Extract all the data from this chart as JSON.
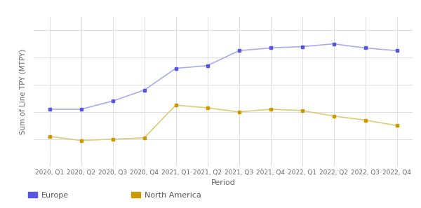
{
  "periods": [
    "2020, Q1",
    "2020, Q2",
    "2020, Q3",
    "2020, Q4",
    "2021, Q1",
    "2021, Q2",
    "2021, Q3",
    "2021, Q4",
    "2022, Q1",
    "2022, Q2",
    "2022, Q3",
    "2022, Q4"
  ],
  "europe": [
    4.2,
    4.2,
    4.8,
    5.6,
    7.2,
    7.4,
    8.5,
    8.7,
    8.8,
    9.0,
    8.7,
    8.5
  ],
  "north_america": [
    2.2,
    1.9,
    2.0,
    2.1,
    4.5,
    4.3,
    4.0,
    4.2,
    4.1,
    3.7,
    3.4,
    3.0
  ],
  "europe_color": "#5555dd",
  "europe_line_color": "#aaaaee",
  "north_america_color": "#cc9900",
  "north_america_line_color": "#ddcc77",
  "europe_label": "Europe",
  "north_america_label": "North America",
  "xlabel": "Period",
  "ylabel": "Sum of Line TPY (MTPY)",
  "background_color": "#ffffff",
  "grid_color": "#dddddd",
  "ylim_min": 0.0,
  "ylim_max": 11.0
}
